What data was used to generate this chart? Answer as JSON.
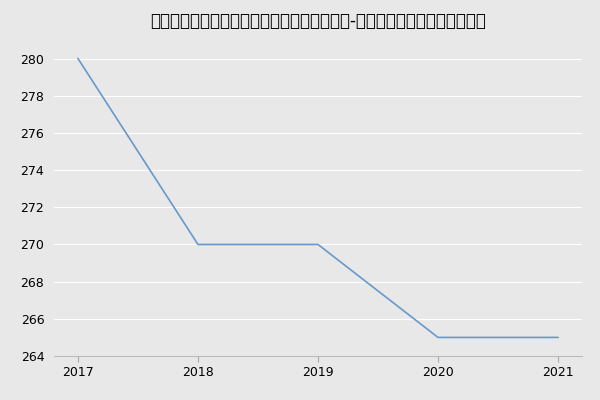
{
  "title": "空军工程大学航空航天工程学院军队指挥学（-历年复试）研究生录取分数线",
  "x": [
    2017,
    2018,
    2019,
    2020,
    2021
  ],
  "y": [
    280,
    270,
    270,
    265,
    265
  ],
  "line_color": "#6699cc",
  "bg_color": "#e8e8e8",
  "plot_bg_color": "#e8e8e8",
  "grid_color": "#ffffff",
  "ylim": [
    264,
    281
  ],
  "yticks": [
    264,
    266,
    268,
    270,
    272,
    274,
    276,
    278,
    280
  ],
  "xticks": [
    2017,
    2018,
    2019,
    2020,
    2021
  ],
  "title_fontsize": 12,
  "tick_fontsize": 9
}
